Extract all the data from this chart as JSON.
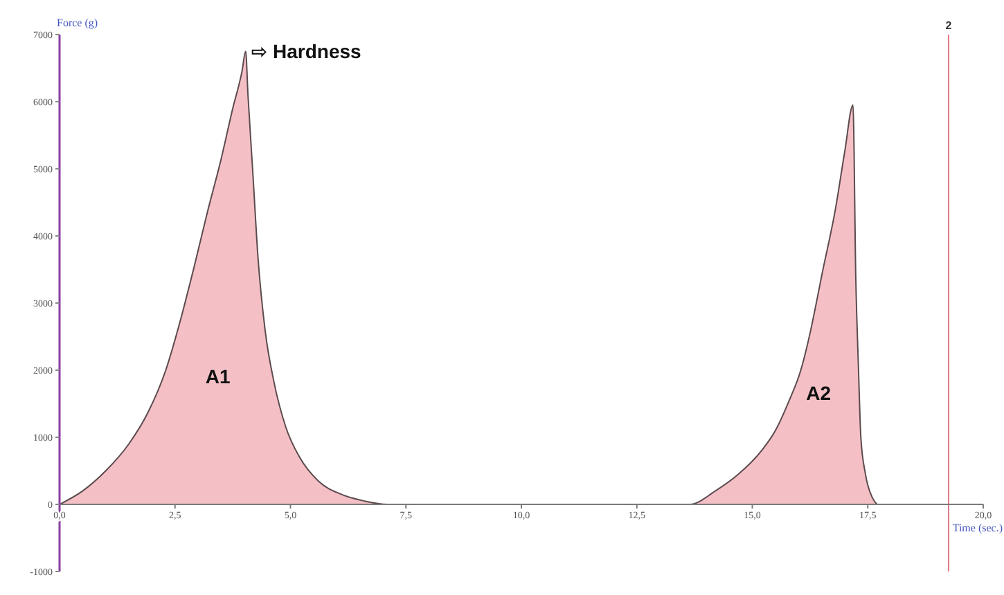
{
  "chart_data": {
    "type": "area",
    "xlabel": "Time (sec.)",
    "ylabel": "Force (g)",
    "x": [
      0,
      0.5,
      1.0,
      1.5,
      1.9,
      2.3,
      2.6,
      2.9,
      3.2,
      3.5,
      3.75,
      3.95,
      4.03,
      4.08,
      4.18,
      4.3,
      4.45,
      4.65,
      4.9,
      5.2,
      5.6,
      6.1,
      6.6,
      7.1,
      13.65,
      14.2,
      14.7,
      15.2,
      15.5,
      15.8,
      16.05,
      16.25,
      16.4,
      16.5,
      16.8,
      17.0,
      17.18,
      17.24,
      17.3,
      17.35,
      17.45,
      17.6,
      17.7
    ],
    "values": [
      0,
      200,
      500,
      900,
      1350,
      2000,
      2700,
      3500,
      4350,
      5150,
      5900,
      6450,
      6750,
      6100,
      5000,
      3650,
      2600,
      1800,
      1150,
      700,
      350,
      150,
      50,
      0,
      0,
      200,
      450,
      800,
      1100,
      1550,
      2000,
      2550,
      3050,
      3400,
      4400,
      5250,
      5950,
      3400,
      2000,
      1000,
      450,
      100,
      0
    ],
    "color": "#f4c0c6",
    "xlim": [
      0,
      20
    ],
    "xticks": [
      {
        "value": 0,
        "label": "0,0"
      },
      {
        "value": 2.5,
        "label": "2,5"
      },
      {
        "value": 5,
        "label": "5,0"
      },
      {
        "value": 7.5,
        "label": "7,5"
      },
      {
        "value": 10,
        "label": "10,0"
      },
      {
        "value": 12.5,
        "label": "12,5"
      },
      {
        "value": 15,
        "label": "15,0"
      },
      {
        "value": 17.5,
        "label": "17,5"
      },
      {
        "value": 20,
        "label": "20,0"
      }
    ],
    "ylim": [
      -1000,
      7000
    ],
    "yticks": [
      -1000,
      0,
      1000,
      2000,
      3000,
      4000,
      5000,
      6000,
      7000
    ],
    "ref_lines": [
      {
        "axis": "x",
        "value": 19.25,
        "color": "#e57a88"
      }
    ],
    "annotations": [
      {
        "text": "⇨ Hardness",
        "x": 4.03,
        "y": 6750
      },
      "A1",
      "A2",
      {
        "text": "2",
        "x": 19.25,
        "y": 7000
      }
    ]
  }
}
